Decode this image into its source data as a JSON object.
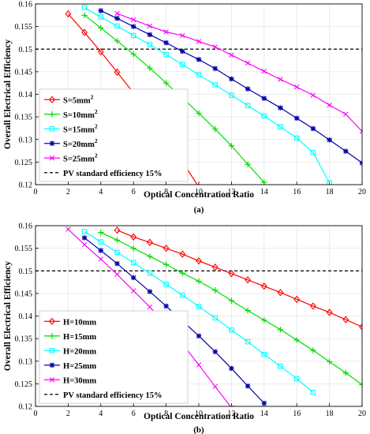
{
  "chart_data": [
    {
      "type": "line",
      "panel_label": "(a)",
      "xlabel": "Optical Concentration Ratio",
      "ylabel": "Overall Electrical Efficiency",
      "xlim": [
        0,
        20
      ],
      "ylim": [
        0.12,
        0.16
      ],
      "xticks": [
        "0",
        "2",
        "4",
        "6",
        "8",
        "10",
        "12",
        "14",
        "16",
        "18",
        "20"
      ],
      "yticks": [
        "0.12",
        "0.125",
        "0.13",
        "0.135",
        "0.14",
        "0.145",
        "0.15",
        "0.155",
        "0.16"
      ],
      "grid": true,
      "legend_position": "bottom-left",
      "reference_line": {
        "label": "PV standard efficiency 15%",
        "y": 0.15,
        "color": "#000000",
        "style": "dashed"
      },
      "series": [
        {
          "name": "S=5mm",
          "superscript": "2",
          "color": "#FF0000",
          "marker": "diamond",
          "x": [
            2,
            3,
            4,
            5,
            6,
            7,
            8,
            9,
            10
          ],
          "y": [
            0.1578,
            0.1537,
            0.1494,
            0.1449,
            0.1403,
            0.1354,
            0.1303,
            0.125,
            0.1195
          ]
        },
        {
          "name": "S=10mm",
          "superscript": "2",
          "color": "#00DD00",
          "marker": "plus",
          "x": [
            3,
            4,
            5,
            6,
            7,
            8,
            9,
            10,
            11,
            12,
            13,
            14
          ],
          "y": [
            0.1575,
            0.1547,
            0.1518,
            0.1489,
            0.1458,
            0.1425,
            0.1392,
            0.1358,
            0.1323,
            0.1286,
            0.1245,
            0.1205
          ]
        },
        {
          "name": "S=15mm",
          "superscript": "2",
          "color": "#00FFFF",
          "marker": "square",
          "x": [
            3,
            4,
            5,
            6,
            7,
            8,
            9,
            10,
            11,
            12,
            13,
            14,
            15,
            16,
            17,
            18
          ],
          "y": [
            0.1592,
            0.1571,
            0.1551,
            0.153,
            0.151,
            0.1488,
            0.1466,
            0.1443,
            0.1421,
            0.1398,
            0.1375,
            0.1352,
            0.1328,
            0.1303,
            0.1271,
            0.1204
          ]
        },
        {
          "name": "S=20mm",
          "superscript": "2",
          "color": "#0000AA",
          "marker": "star",
          "x": [
            4,
            5,
            6,
            7,
            8,
            9,
            10,
            11,
            12,
            13,
            14,
            15,
            16,
            17,
            18,
            19,
            20
          ],
          "y": [
            0.1585,
            0.1568,
            0.155,
            0.1532,
            0.1514,
            0.1495,
            0.1477,
            0.1457,
            0.1434,
            0.1412,
            0.1391,
            0.137,
            0.1347,
            0.1324,
            0.1299,
            0.1274,
            0.1248
          ]
        },
        {
          "name": "S=25mm",
          "superscript": "2",
          "color": "#FF00FF",
          "marker": "x",
          "x": [
            5,
            6,
            7,
            8,
            9,
            10,
            11,
            12,
            13,
            14,
            15,
            16,
            17,
            18,
            19,
            20
          ],
          "y": [
            0.1579,
            0.1565,
            0.1551,
            0.1538,
            0.153,
            0.1517,
            0.1505,
            0.1487,
            0.1469,
            0.1451,
            0.1433,
            0.1416,
            0.1398,
            0.1376,
            0.1356,
            0.1318
          ]
        }
      ]
    },
    {
      "type": "line",
      "panel_label": "(b)",
      "xlabel": "Optical Concentration Ratio",
      "ylabel": "Overall Electrical Efficiency",
      "xlim": [
        0,
        20
      ],
      "ylim": [
        0.12,
        0.16
      ],
      "xticks": [
        "0",
        "2",
        "4",
        "6",
        "8",
        "10",
        "12",
        "14",
        "16",
        "18",
        "20"
      ],
      "yticks": [
        "0.12",
        "0.125",
        "0.13",
        "0.135",
        "0.14",
        "0.145",
        "0.15",
        "0.155",
        "0.16"
      ],
      "grid": true,
      "legend_position": "bottom-left",
      "reference_line": {
        "label": "PV standard efficiency 15%",
        "y": 0.15,
        "color": "#000000",
        "style": "dashed"
      },
      "series": [
        {
          "name": "H=10mm",
          "color": "#FF0000",
          "marker": "diamond",
          "x": [
            5,
            6,
            7,
            8,
            9,
            10,
            11,
            12,
            13,
            14,
            15,
            16,
            17,
            18,
            19,
            20
          ],
          "y": [
            0.159,
            0.1575,
            0.1563,
            0.155,
            0.1537,
            0.1522,
            0.1508,
            0.1494,
            0.148,
            0.1466,
            0.1452,
            0.1437,
            0.1422,
            0.1408,
            0.1392,
            0.1376
          ]
        },
        {
          "name": "H=15mm",
          "color": "#00DD00",
          "marker": "plus",
          "x": [
            4,
            5,
            6,
            7,
            8,
            9,
            10,
            11,
            12,
            13,
            14,
            15,
            16,
            17,
            18,
            19,
            20
          ],
          "y": [
            0.1585,
            0.1568,
            0.155,
            0.1532,
            0.1514,
            0.1495,
            0.1477,
            0.1457,
            0.1434,
            0.1412,
            0.1391,
            0.137,
            0.1347,
            0.1324,
            0.1299,
            0.1274,
            0.1248
          ]
        },
        {
          "name": "H=20mm",
          "color": "#00FFFF",
          "marker": "square",
          "x": [
            3,
            4,
            5,
            6,
            7,
            8,
            9,
            10,
            11,
            12,
            13,
            14,
            15,
            16,
            17
          ],
          "y": [
            0.1587,
            0.1564,
            0.1541,
            0.1518,
            0.1495,
            0.147,
            0.1446,
            0.1421,
            0.1396,
            0.1369,
            0.1343,
            0.1315,
            0.1289,
            0.1261,
            0.1231
          ]
        },
        {
          "name": "H=25mm",
          "color": "#0000AA",
          "marker": "star",
          "x": [
            3,
            4,
            5,
            6,
            7,
            8,
            9,
            10,
            11,
            12,
            13,
            14
          ],
          "y": [
            0.1573,
            0.1545,
            0.1516,
            0.1485,
            0.1454,
            0.1422,
            0.1389,
            0.1356,
            0.1321,
            0.1284,
            0.1245,
            0.1207
          ]
        },
        {
          "name": "H=30mm",
          "color": "#FF00FF",
          "marker": "x",
          "x": [
            2,
            3,
            4,
            5,
            6,
            7,
            8,
            9,
            10,
            11,
            12
          ],
          "y": [
            0.1592,
            0.1558,
            0.1526,
            0.1492,
            0.1456,
            0.142,
            0.138,
            0.1338,
            0.1292,
            0.1244,
            0.1197
          ]
        }
      ]
    }
  ]
}
